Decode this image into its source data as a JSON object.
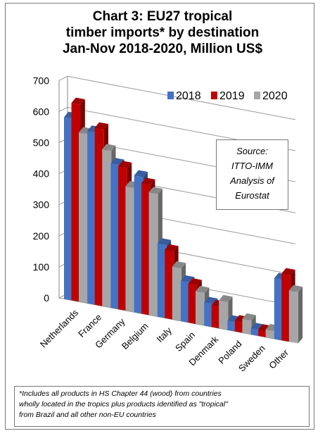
{
  "chart_data": {
    "type": "bar",
    "title": [
      "Chart 3: EU27 tropical",
      "timber imports* by destination",
      "Jan-Nov 2018-2020, Million US$"
    ],
    "categories": [
      "Netherlands",
      "France",
      "Germany",
      "Belgium",
      "Italy",
      "Spain",
      "Denmark",
      "Poland",
      "Sweden",
      "Other"
    ],
    "series": [
      {
        "name": "2018",
        "color": "#4472C4",
        "values": [
          585,
          555,
          465,
          440,
          235,
          130,
          75,
          30,
          20,
          195
        ]
      },
      {
        "name": "2019",
        "color": "#C00000",
        "values": [
          635,
          570,
          460,
          420,
          220,
          125,
          70,
          35,
          20,
          215
        ]
      },
      {
        "name": "2020",
        "color": "#A6A6A6",
        "values": [
          545,
          505,
          400,
          395,
          170,
          105,
          90,
          45,
          25,
          165
        ]
      }
    ],
    "yticks": [
      "700",
      "600",
      "500",
      "400",
      "300",
      "200",
      "100",
      "0"
    ],
    "ylim": [
      0,
      700
    ],
    "grid": true,
    "legend": "top-right",
    "annotation": [
      "Source:",
      "ITTO-IMM",
      "Analysis of",
      "Eurostat"
    ],
    "footnote": [
      "*Includes all products in HS Chapter 44 (wood) from countries",
      "wholly located in the tropics plus products identified as \"tropical\"",
      "from Brazil and all other non-EU countries"
    ]
  }
}
